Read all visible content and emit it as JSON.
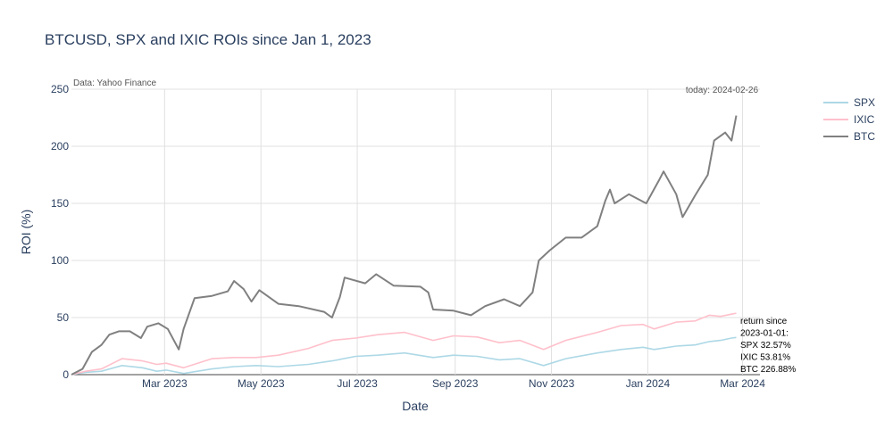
{
  "chart_data": {
    "type": "line",
    "title": "BTCUSD, SPX and IXIC ROIs since Jan 1, 2023",
    "xlabel": "Date",
    "ylabel": "ROI (%)",
    "xlim": [
      "2023-01-01",
      "2024-03-12"
    ],
    "ylim": [
      0,
      250
    ],
    "yticks": [
      0,
      50,
      100,
      150,
      200,
      250
    ],
    "xticks": [
      {
        "date": "2023-03-01",
        "label": "Mar 2023"
      },
      {
        "date": "2023-05-01",
        "label": "May 2023"
      },
      {
        "date": "2023-07-01",
        "label": "Jul 2023"
      },
      {
        "date": "2023-09-01",
        "label": "Sep 2023"
      },
      {
        "date": "2023-11-01",
        "label": "Nov 2023"
      },
      {
        "date": "2024-01-01",
        "label": "Jan 2024"
      },
      {
        "date": "2024-03-01",
        "label": "Mar 2024"
      }
    ],
    "grid": true,
    "legend": "top-right",
    "annotations": {
      "source": "Data: Yahoo Finance",
      "today": "today: 2024-02-26",
      "returns": [
        "return since",
        "2023-01-01:",
        "SPX 32.57%",
        "IXIC 53.81%",
        "BTC 226.88%"
      ]
    },
    "series": [
      {
        "name": "SPX",
        "color": "#add8e6",
        "points": [
          [
            "2023-01-01",
            0
          ],
          [
            "2023-01-10",
            2
          ],
          [
            "2023-01-20",
            3
          ],
          [
            "2023-02-02",
            8
          ],
          [
            "2023-02-15",
            6
          ],
          [
            "2023-02-24",
            3
          ],
          [
            "2023-03-02",
            4
          ],
          [
            "2023-03-13",
            1
          ],
          [
            "2023-03-31",
            5
          ],
          [
            "2023-04-14",
            7
          ],
          [
            "2023-04-28",
            8
          ],
          [
            "2023-05-12",
            7
          ],
          [
            "2023-05-31",
            9
          ],
          [
            "2023-06-15",
            12
          ],
          [
            "2023-06-30",
            16
          ],
          [
            "2023-07-14",
            17
          ],
          [
            "2023-07-31",
            19
          ],
          [
            "2023-08-18",
            15
          ],
          [
            "2023-08-31",
            17
          ],
          [
            "2023-09-15",
            16
          ],
          [
            "2023-09-29",
            13
          ],
          [
            "2023-10-12",
            14
          ],
          [
            "2023-10-27",
            8
          ],
          [
            "2023-11-10",
            14
          ],
          [
            "2023-11-30",
            19
          ],
          [
            "2023-12-15",
            22
          ],
          [
            "2023-12-29",
            24
          ],
          [
            "2024-01-05",
            22
          ],
          [
            "2024-01-19",
            25
          ],
          [
            "2024-01-31",
            26
          ],
          [
            "2024-02-09",
            29
          ],
          [
            "2024-02-16",
            30
          ],
          [
            "2024-02-23",
            32
          ],
          [
            "2024-02-26",
            32.57
          ]
        ]
      },
      {
        "name": "IXIC",
        "color": "#ffc0cb",
        "points": [
          [
            "2023-01-01",
            0
          ],
          [
            "2023-01-10",
            3
          ],
          [
            "2023-01-20",
            5
          ],
          [
            "2023-02-02",
            14
          ],
          [
            "2023-02-15",
            12
          ],
          [
            "2023-02-24",
            9
          ],
          [
            "2023-03-02",
            10
          ],
          [
            "2023-03-13",
            6
          ],
          [
            "2023-03-31",
            14
          ],
          [
            "2023-04-14",
            15
          ],
          [
            "2023-04-28",
            15
          ],
          [
            "2023-05-12",
            17
          ],
          [
            "2023-05-31",
            23
          ],
          [
            "2023-06-15",
            30
          ],
          [
            "2023-06-30",
            32
          ],
          [
            "2023-07-14",
            35
          ],
          [
            "2023-07-31",
            37
          ],
          [
            "2023-08-18",
            30
          ],
          [
            "2023-08-31",
            34
          ],
          [
            "2023-09-15",
            33
          ],
          [
            "2023-09-29",
            28
          ],
          [
            "2023-10-12",
            30
          ],
          [
            "2023-10-27",
            22
          ],
          [
            "2023-11-10",
            30
          ],
          [
            "2023-11-30",
            37
          ],
          [
            "2023-12-15",
            43
          ],
          [
            "2023-12-29",
            44
          ],
          [
            "2024-01-05",
            40
          ],
          [
            "2024-01-19",
            46
          ],
          [
            "2024-01-31",
            47
          ],
          [
            "2024-02-09",
            52
          ],
          [
            "2024-02-16",
            51
          ],
          [
            "2024-02-23",
            53
          ],
          [
            "2024-02-26",
            53.81
          ]
        ]
      },
      {
        "name": "BTC",
        "color": "#808080",
        "points": [
          [
            "2023-01-01",
            0
          ],
          [
            "2023-01-08",
            5
          ],
          [
            "2023-01-14",
            20
          ],
          [
            "2023-01-20",
            26
          ],
          [
            "2023-01-25",
            35
          ],
          [
            "2023-01-31",
            38
          ],
          [
            "2023-02-07",
            38
          ],
          [
            "2023-02-14",
            32
          ],
          [
            "2023-02-18",
            42
          ],
          [
            "2023-02-25",
            45
          ],
          [
            "2023-03-03",
            40
          ],
          [
            "2023-03-10",
            22
          ],
          [
            "2023-03-13",
            40
          ],
          [
            "2023-03-20",
            67
          ],
          [
            "2023-03-31",
            69
          ],
          [
            "2023-04-10",
            73
          ],
          [
            "2023-04-14",
            82
          ],
          [
            "2023-04-20",
            75
          ],
          [
            "2023-04-25",
            64
          ],
          [
            "2023-04-30",
            74
          ],
          [
            "2023-05-12",
            62
          ],
          [
            "2023-05-25",
            60
          ],
          [
            "2023-06-10",
            55
          ],
          [
            "2023-06-15",
            50
          ],
          [
            "2023-06-20",
            68
          ],
          [
            "2023-06-23",
            85
          ],
          [
            "2023-07-06",
            80
          ],
          [
            "2023-07-13",
            88
          ],
          [
            "2023-07-24",
            78
          ],
          [
            "2023-08-10",
            77
          ],
          [
            "2023-08-15",
            72
          ],
          [
            "2023-08-18",
            57
          ],
          [
            "2023-08-31",
            56
          ],
          [
            "2023-09-11",
            52
          ],
          [
            "2023-09-20",
            60
          ],
          [
            "2023-10-02",
            66
          ],
          [
            "2023-10-12",
            60
          ],
          [
            "2023-10-20",
            72
          ],
          [
            "2023-10-24",
            100
          ],
          [
            "2023-10-31",
            109
          ],
          [
            "2023-11-10",
            120
          ],
          [
            "2023-11-20",
            120
          ],
          [
            "2023-11-30",
            130
          ],
          [
            "2023-12-05",
            152
          ],
          [
            "2023-12-08",
            162
          ],
          [
            "2023-12-11",
            150
          ],
          [
            "2023-12-20",
            158
          ],
          [
            "2023-12-31",
            150
          ],
          [
            "2024-01-08",
            170
          ],
          [
            "2024-01-11",
            178
          ],
          [
            "2024-01-19",
            158
          ],
          [
            "2024-01-23",
            138
          ],
          [
            "2024-01-31",
            157
          ],
          [
            "2024-02-08",
            175
          ],
          [
            "2024-02-12",
            205
          ],
          [
            "2024-02-19",
            212
          ],
          [
            "2024-02-23",
            205
          ],
          [
            "2024-02-26",
            226.88
          ]
        ]
      }
    ]
  }
}
